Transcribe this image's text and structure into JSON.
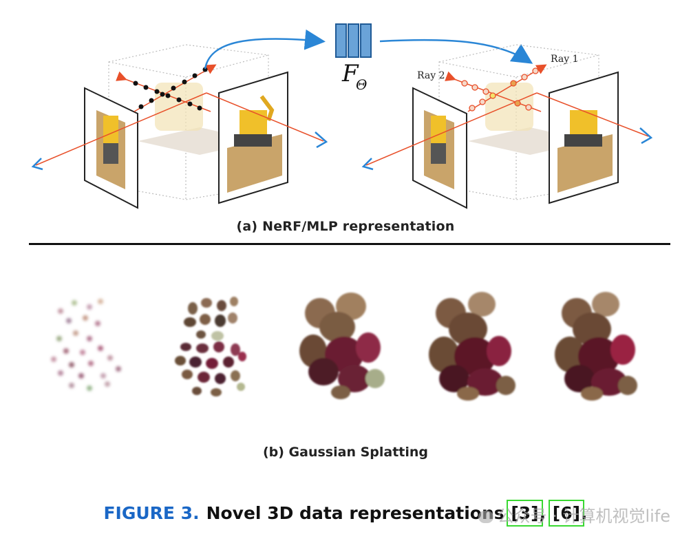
{
  "panel_a": {
    "caption": "(a) NeRF/MLP representation",
    "mlp_symbol": "F",
    "mlp_subscript": "Θ",
    "ray1_label": "Ray 1",
    "ray2_label": "Ray 2"
  },
  "panel_b": {
    "caption": "(b) Gaussian Splatting"
  },
  "figure_caption": {
    "label": "FIGURE 3.",
    "text": "Novel 3D data representations ",
    "ref1": "[3]",
    "sep": ", ",
    "ref2": "[6]",
    "end": "."
  },
  "watermark": "公众号 · 计算机视觉life",
  "colors": {
    "accent_blue": "#1a67c6",
    "ray_red": "#e8502a",
    "highlight_green": "#39d931"
  }
}
